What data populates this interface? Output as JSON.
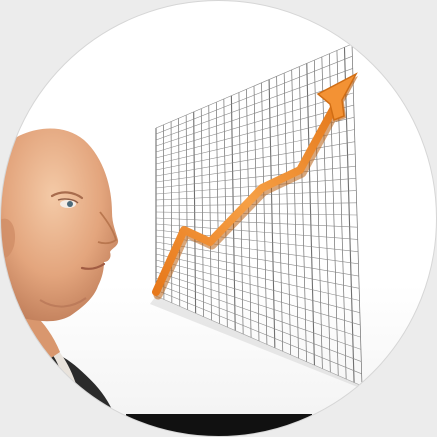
{
  "scene": {
    "subject": "bald-man-profile",
    "frame": "circle",
    "colors": {
      "page": "#ececec",
      "backdrop": "#ffffff",
      "skin": "#e9b48c",
      "skin_shadow": "#c98a63",
      "suit": "#2b2b2b",
      "grid": "#6f6f6f",
      "arrow": "#f08a24",
      "arrow_shadow": "#b85e10"
    }
  }
}
